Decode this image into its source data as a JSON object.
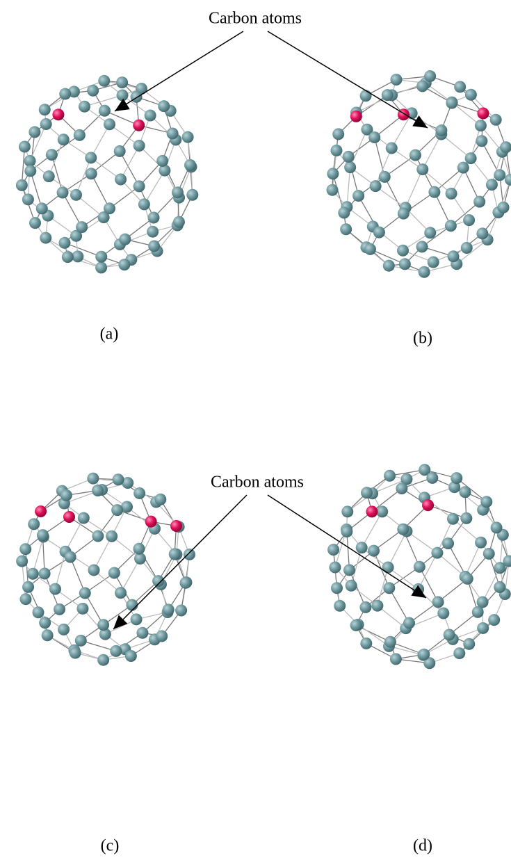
{
  "annotations": [
    {
      "label": "Carbon atoms"
    },
    {
      "label": "Carbon atoms"
    }
  ],
  "panels": [
    {
      "label": "(a)"
    },
    {
      "label": "(b)"
    },
    {
      "label": "(c)"
    },
    {
      "label": "(d)"
    }
  ]
}
